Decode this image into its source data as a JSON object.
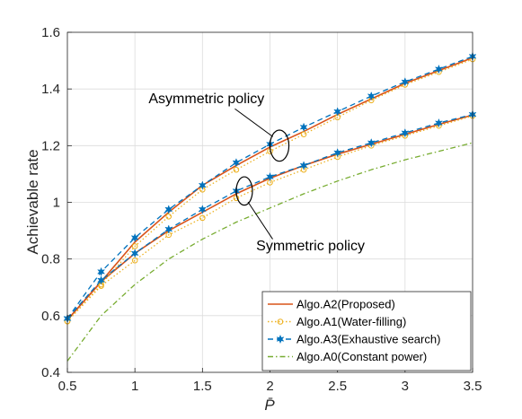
{
  "chart_data": {
    "type": "line",
    "xlabel": "P̄",
    "ylabel": "Achievable rate",
    "xlim": [
      0.5,
      3.5
    ],
    "ylim": [
      0.4,
      1.6
    ],
    "xticks": [
      "0.5",
      "1",
      "1.5",
      "2",
      "2.5",
      "3",
      "3.5"
    ],
    "yticks": [
      "0.4",
      "0.6",
      "0.8",
      "1",
      "1.2",
      "1.4",
      "1.6"
    ],
    "grid": true,
    "legend_position": "bottom-right",
    "x": [
      0.5,
      0.75,
      1.0,
      1.25,
      1.5,
      1.75,
      2.0,
      2.25,
      2.5,
      2.75,
      3.0,
      3.25,
      3.5
    ],
    "series": [
      {
        "name": "Algo.A2(Proposed)",
        "color": "#D95319",
        "style": "solid",
        "marker": "none",
        "groups": [
          [
            0.585,
            0.72,
            0.86,
            0.965,
            1.06,
            1.13,
            1.195,
            1.25,
            1.31,
            1.365,
            1.42,
            1.465,
            1.51
          ],
          [
            0.585,
            0.72,
            0.82,
            0.9,
            0.965,
            1.03,
            1.085,
            1.13,
            1.17,
            1.205,
            1.24,
            1.275,
            1.308
          ]
        ]
      },
      {
        "name": "Algo.A1(Water-filling)",
        "color": "#EDB120",
        "style": "dotted",
        "marker": "circle",
        "groups": [
          [
            0.58,
            0.71,
            0.845,
            0.95,
            1.045,
            1.115,
            1.18,
            1.24,
            1.3,
            1.36,
            1.415,
            1.46,
            1.505
          ],
          [
            0.58,
            0.705,
            0.795,
            0.885,
            0.945,
            1.015,
            1.07,
            1.115,
            1.16,
            1.2,
            1.235,
            1.27,
            1.305
          ]
        ]
      },
      {
        "name": "Algo.A3(Exhaustive search)",
        "color": "#0072BD",
        "style": "dashed",
        "marker": "star",
        "groups": [
          [
            0.59,
            0.755,
            0.875,
            0.975,
            1.06,
            1.14,
            1.205,
            1.265,
            1.32,
            1.375,
            1.425,
            1.47,
            1.515
          ],
          [
            0.59,
            0.725,
            0.82,
            0.905,
            0.975,
            1.04,
            1.09,
            1.13,
            1.175,
            1.21,
            1.245,
            1.28,
            1.31
          ]
        ]
      },
      {
        "name": "Algo.A0(Constant power)",
        "color": "#77AC30",
        "style": "dashdot",
        "marker": "none",
        "groups": [
          [
            0.44,
            0.6,
            0.71,
            0.8,
            0.87,
            0.93,
            0.98,
            1.03,
            1.075,
            1.115,
            1.15,
            1.18,
            1.21
          ]
        ]
      }
    ],
    "annotations": [
      {
        "text": "Asymmetric policy",
        "x": 1.53,
        "y": 1.35
      },
      {
        "text": "Symmetric policy",
        "x": 2.3,
        "y": 0.83
      }
    ],
    "ellipses": [
      {
        "cx": 2.07,
        "cy": 1.2,
        "rx": 0.07,
        "ry": 0.055,
        "arrow_to": [
          1.74,
          1.33
        ]
      },
      {
        "cx": 1.81,
        "cy": 1.04,
        "rx": 0.06,
        "ry": 0.05,
        "arrow_to": [
          2.02,
          0.87
        ]
      }
    ]
  }
}
